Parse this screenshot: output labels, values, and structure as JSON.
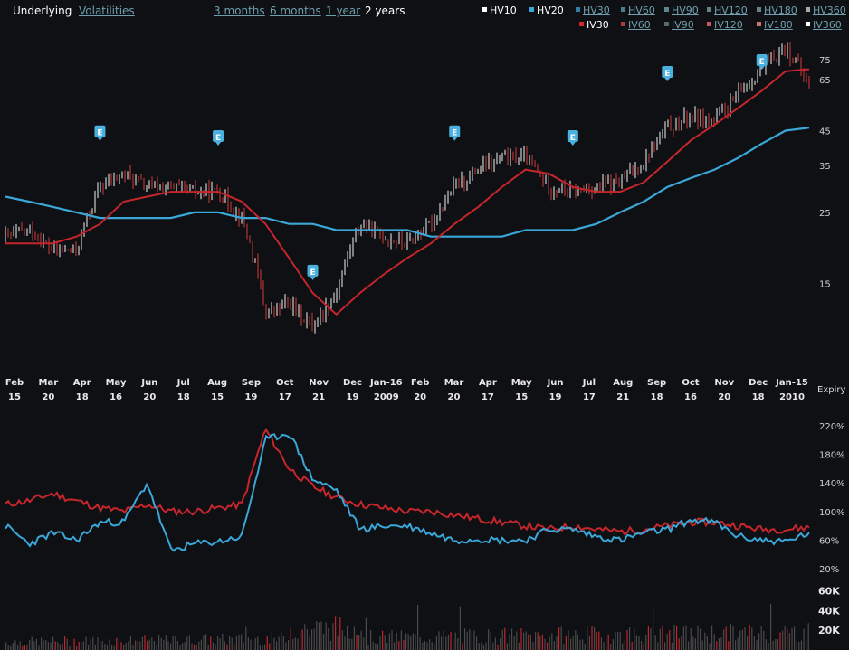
{
  "tabs": [
    {
      "label": "Underlying",
      "active": true
    },
    {
      "label": "Volatilities",
      "active": false
    }
  ],
  "ranges": [
    {
      "label": "3 months",
      "active": false
    },
    {
      "label": "6 months",
      "active": false
    },
    {
      "label": "1 year",
      "active": false
    },
    {
      "label": "2 years",
      "active": true
    }
  ],
  "legend_row1": [
    {
      "label": "HV10",
      "on": true,
      "color": "#ffffff"
    },
    {
      "label": "HV20",
      "on": true,
      "color": "#3aa7d8"
    },
    {
      "label": "HV30",
      "on": false,
      "color": "#2f7fa6"
    },
    {
      "label": "HV60",
      "on": false,
      "color": "#4c7f8c"
    },
    {
      "label": "HV90",
      "on": false,
      "color": "#5b8590"
    },
    {
      "label": "HV120",
      "on": false,
      "color": "#62828a"
    },
    {
      "label": "HV180",
      "on": false,
      "color": "#6b8288"
    },
    {
      "label": "HV360",
      "on": false,
      "color": "#aaaaaa"
    }
  ],
  "legend_row2": [
    {
      "label": "IV30",
      "on": true,
      "color": "#d9262c"
    },
    {
      "label": "IV60",
      "on": false,
      "color": "#b03a3e"
    },
    {
      "label": "IV90",
      "on": false,
      "color": "#4f6f5a"
    },
    {
      "label": "IV120",
      "on": false,
      "color": "#c05a5a"
    },
    {
      "label": "IV180",
      "on": false,
      "color": "#d07070"
    },
    {
      "label": "IV360",
      "on": false,
      "color": "#ffffff"
    }
  ],
  "expiry_label": "Expiry",
  "chart_data": [
    {
      "type": "line",
      "name": "price",
      "y_scale": "log",
      "ylim": [
        8,
        90
      ],
      "yticks": [
        15,
        25,
        35,
        45,
        65,
        75
      ],
      "earnings_marker": "E",
      "earnings_x": [
        4,
        9,
        13,
        19,
        24,
        28,
        32
      ],
      "x": [
        0,
        1,
        2,
        3,
        4,
        5,
        6,
        7,
        8,
        9,
        10,
        11,
        12,
        13,
        14,
        15,
        16,
        17,
        18,
        19,
        20,
        21,
        22,
        23,
        24,
        25,
        26,
        27,
        28,
        29,
        30,
        31,
        32,
        33,
        34
      ],
      "close": [
        21,
        22,
        19,
        19,
        30,
        33,
        30,
        30,
        29,
        29,
        24,
        12,
        13,
        11,
        14,
        23,
        21,
        20,
        23,
        30,
        34,
        37,
        37,
        30,
        29,
        30,
        31,
        36,
        46,
        50,
        48,
        58,
        70,
        82,
        62
      ],
      "ma_red": [
        20,
        20,
        20,
        21,
        23,
        27,
        28,
        29,
        29,
        29,
        27,
        23,
        18,
        14,
        12,
        14,
        16,
        18,
        20,
        23,
        26,
        30,
        34,
        33,
        30,
        29,
        29,
        31,
        36,
        42,
        47,
        53,
        60,
        69,
        70
      ],
      "ma_blue": [
        28,
        27,
        26,
        25,
        24,
        24,
        24,
        24,
        25,
        25,
        24,
        24,
        23,
        23,
        22,
        22,
        22,
        22,
        21,
        21,
        21,
        21,
        22,
        22,
        22,
        23,
        25,
        27,
        30,
        32,
        34,
        37,
        41,
        45,
        46
      ]
    },
    {
      "type": "line",
      "name": "volatility",
      "ylim": [
        0,
        240
      ],
      "yticks": [
        "20%",
        "60%",
        "100%",
        "140%",
        "180%",
        "220%"
      ],
      "x": [
        0,
        1,
        2,
        3,
        4,
        5,
        6,
        7,
        8,
        9,
        10,
        11,
        12,
        13,
        14,
        15,
        16,
        17,
        18,
        19,
        20,
        21,
        22,
        23,
        24,
        25,
        26,
        27,
        28,
        29,
        30,
        31,
        32,
        33,
        34
      ],
      "HV20": [
        80,
        55,
        70,
        60,
        85,
        85,
        140,
        45,
        55,
        58,
        65,
        200,
        210,
        145,
        130,
        75,
        80,
        80,
        70,
        60,
        62,
        60,
        60,
        75,
        75,
        65,
        60,
        70,
        75,
        88,
        85,
        65,
        60,
        58,
        70
      ],
      "IV30": [
        110,
        115,
        125,
        115,
        105,
        100,
        110,
        100,
        100,
        105,
        110,
        215,
        160,
        135,
        120,
        110,
        105,
        100,
        100,
        95,
        90,
        85,
        80,
        75,
        80,
        75,
        72,
        75,
        80,
        85,
        85,
        80,
        75,
        75,
        78
      ]
    },
    {
      "type": "bar",
      "name": "volume",
      "ylim": [
        0,
        65000
      ],
      "yticks": [
        "20K",
        "40K",
        "60K"
      ]
    }
  ],
  "x_axis": [
    {
      "month": "Feb",
      "day": "15"
    },
    {
      "month": "Mar",
      "day": "20"
    },
    {
      "month": "Apr",
      "day": "18"
    },
    {
      "month": "May",
      "day": "16"
    },
    {
      "month": "Jun",
      "day": "20"
    },
    {
      "month": "Jul",
      "day": "18"
    },
    {
      "month": "Aug",
      "day": "15"
    },
    {
      "month": "Sep",
      "day": "19"
    },
    {
      "month": "Oct",
      "day": "17"
    },
    {
      "month": "Nov",
      "day": "21"
    },
    {
      "month": "Dec",
      "day": "19"
    },
    {
      "month": "Jan-16",
      "day": "2009"
    },
    {
      "month": "Feb",
      "day": "20"
    },
    {
      "month": "Mar",
      "day": "20"
    },
    {
      "month": "Apr",
      "day": "17"
    },
    {
      "month": "May",
      "day": "15"
    },
    {
      "month": "Jun",
      "day": "19"
    },
    {
      "month": "Jul",
      "day": "17"
    },
    {
      "month": "Aug",
      "day": "21"
    },
    {
      "month": "Sep",
      "day": "18"
    },
    {
      "month": "Oct",
      "day": "16"
    },
    {
      "month": "Nov",
      "day": "20"
    },
    {
      "month": "Dec",
      "day": "18"
    },
    {
      "month": "Jan-15",
      "day": "2010"
    }
  ]
}
